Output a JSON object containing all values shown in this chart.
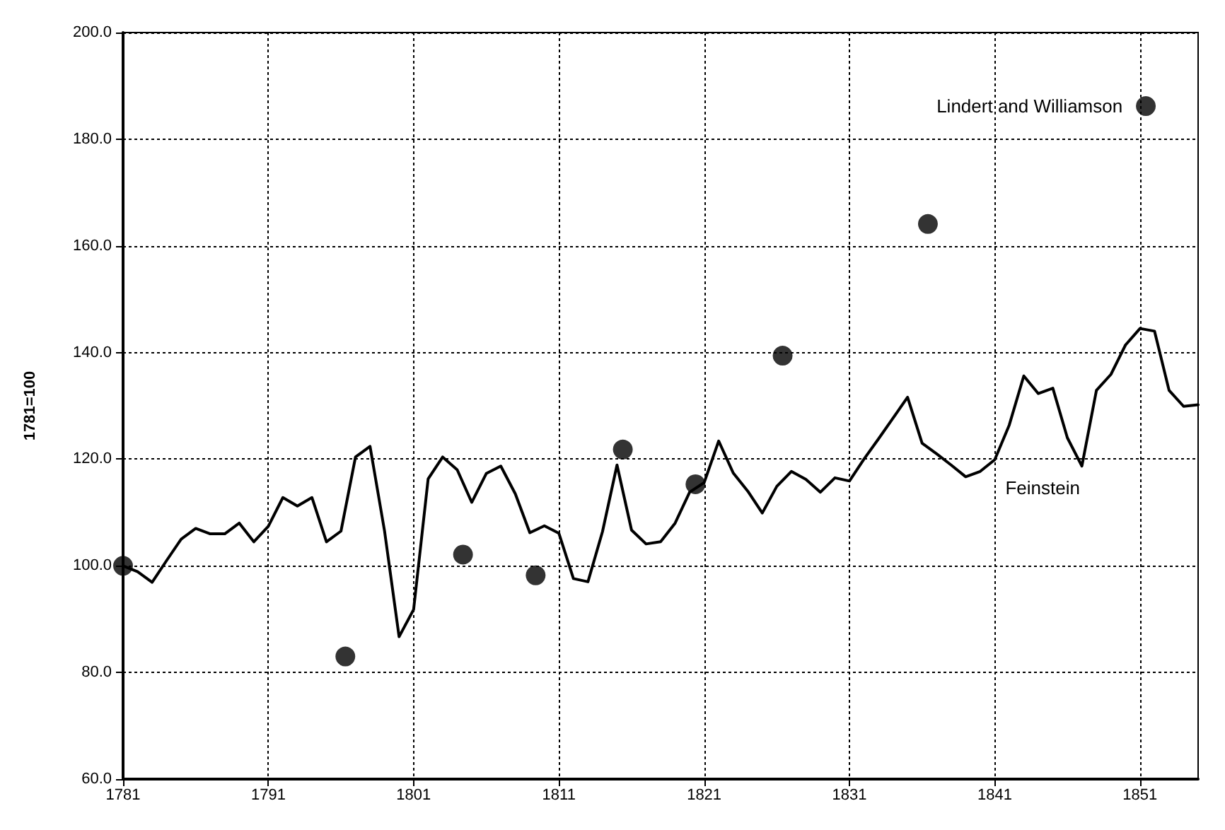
{
  "chart_data": {
    "type": "line",
    "ylabel": "1781=100",
    "xlim": [
      1781,
      1855
    ],
    "xticks": [
      1781,
      1791,
      1801,
      1811,
      1821,
      1831,
      1841,
      1851
    ],
    "ylim": [
      60,
      200
    ],
    "yticks": [
      {
        "value": 60,
        "label": "60.0"
      },
      {
        "value": 80,
        "label": "80.0"
      },
      {
        "value": 100,
        "label": "100.0"
      },
      {
        "value": 120,
        "label": "120.0"
      },
      {
        "value": 140,
        "label": "140.0"
      },
      {
        "value": 160,
        "label": "160.0"
      },
      {
        "value": 180,
        "label": "180.0"
      },
      {
        "value": 200,
        "label": "200.0"
      }
    ],
    "grid": true,
    "legend": false,
    "series": [
      {
        "name": "Feinstein",
        "color": "#000000",
        "marker": "none",
        "line_style": "solid",
        "x": [
          1781,
          1782,
          1783,
          1784,
          1785,
          1786,
          1787,
          1788,
          1789,
          1790,
          1791,
          1792,
          1793,
          1794,
          1795,
          1796,
          1797,
          1798,
          1799,
          1800,
          1801,
          1802,
          1803,
          1804,
          1805,
          1806,
          1807,
          1808,
          1809,
          1810,
          1811,
          1812,
          1813,
          1814,
          1815,
          1816,
          1817,
          1818,
          1819,
          1820,
          1821,
          1822,
          1823,
          1824,
          1825,
          1826,
          1827,
          1828,
          1829,
          1830,
          1831,
          1832,
          1833,
          1834,
          1835,
          1836,
          1837,
          1838,
          1839,
          1840,
          1841,
          1842,
          1843,
          1844,
          1845,
          1846,
          1847,
          1848,
          1849,
          1850,
          1851,
          1852,
          1853,
          1854,
          1855
        ],
        "values": [
          100,
          98.9,
          96.9,
          101,
          105,
          107,
          106,
          106,
          108,
          104.5,
          107.4,
          112.8,
          111.2,
          112.8,
          104.5,
          106.5,
          120.4,
          122.4,
          106.5,
          86.7,
          91.8,
          116.3,
          120.4,
          118,
          111.9,
          117.3,
          118.7,
          113.5,
          106.2,
          107.5,
          106.1,
          97.6,
          97,
          106.4,
          118.9,
          106.7,
          104.1,
          104.5,
          108,
          113.8,
          115.6,
          123.4,
          117.4,
          114,
          109.9,
          114.9,
          117.7,
          116.2,
          113.8,
          116.5,
          115.9,
          120,
          123.8,
          127.7,
          131.6,
          123,
          121,
          118.9,
          116.7,
          117.7,
          119.9,
          126.4,
          135.6,
          132.3,
          133.3,
          124,
          118.7,
          132.9,
          135.9,
          141.4,
          144.5,
          144,
          132.9,
          129.9,
          130.2
        ]
      },
      {
        "name": "Lindert and Williamson",
        "type": "scatter",
        "color": "#000000",
        "marker": "circle",
        "x": [
          1781,
          1796.3,
          1804.4,
          1809.4,
          1815.4,
          1820.4,
          1826.4,
          1836.4,
          1851.4
        ],
        "values": [
          100,
          83,
          102.1,
          98.2,
          121.8,
          115.3,
          139.4,
          164.1,
          186.2
        ]
      }
    ]
  }
}
